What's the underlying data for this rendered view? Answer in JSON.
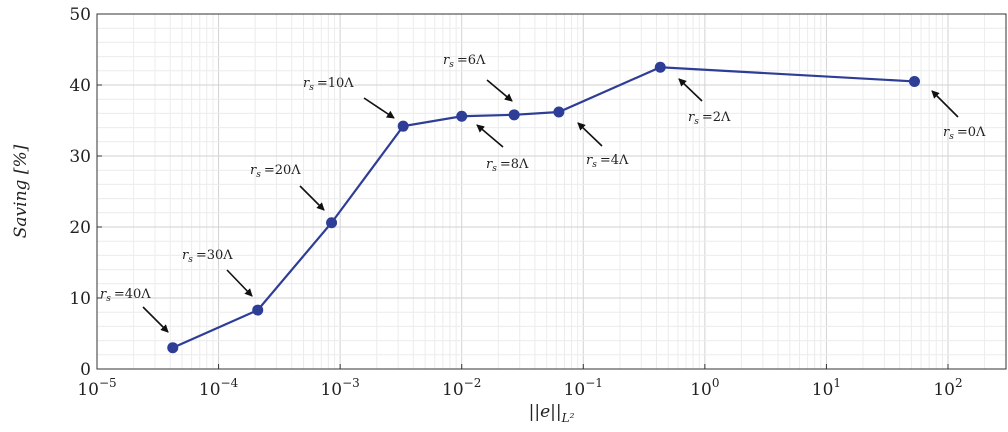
{
  "chart_data": {
    "type": "line",
    "title": "",
    "xlabel": "||e||",
    "xlabel_sub": "L²",
    "ylabel": "Saving [%]",
    "x_scale": "log",
    "xlim": [
      1e-05,
      300
    ],
    "ylim": [
      0,
      50
    ],
    "x_ticks": [
      {
        "base": "10",
        "exp": "−5"
      },
      {
        "base": "10",
        "exp": "−4"
      },
      {
        "base": "10",
        "exp": "−3"
      },
      {
        "base": "10",
        "exp": "−2"
      },
      {
        "base": "10",
        "exp": "−1"
      },
      {
        "base": "10",
        "exp": "0"
      },
      {
        "base": "10",
        "exp": "1"
      },
      {
        "base": "10",
        "exp": "2"
      }
    ],
    "y_ticks": [
      "0",
      "10",
      "20",
      "30",
      "40",
      "50"
    ],
    "grid": true,
    "line_color": "#2e3d96",
    "series": [
      {
        "x": [
          4.2e-05,
          0.00021,
          0.00085,
          0.0033,
          0.01,
          0.027,
          0.063,
          0.43,
          53
        ],
        "values": [
          3.0,
          8.3,
          20.6,
          34.2,
          35.6,
          35.8,
          36.2,
          42.5,
          40.5
        ]
      }
    ],
    "annotations": [
      {
        "sub": "s",
        "value": "=40Λ"
      },
      {
        "sub": "s",
        "value": "=30Λ"
      },
      {
        "sub": "s",
        "value": "=20Λ"
      },
      {
        "sub": "s",
        "value": "=10Λ"
      },
      {
        "sub": "s",
        "value": "=8Λ"
      },
      {
        "sub": "s",
        "value": "=6Λ"
      },
      {
        "sub": "s",
        "value": "=4Λ"
      },
      {
        "sub": "s",
        "value": "=2Λ"
      },
      {
        "sub": "s",
        "value": "=0Λ"
      }
    ]
  }
}
